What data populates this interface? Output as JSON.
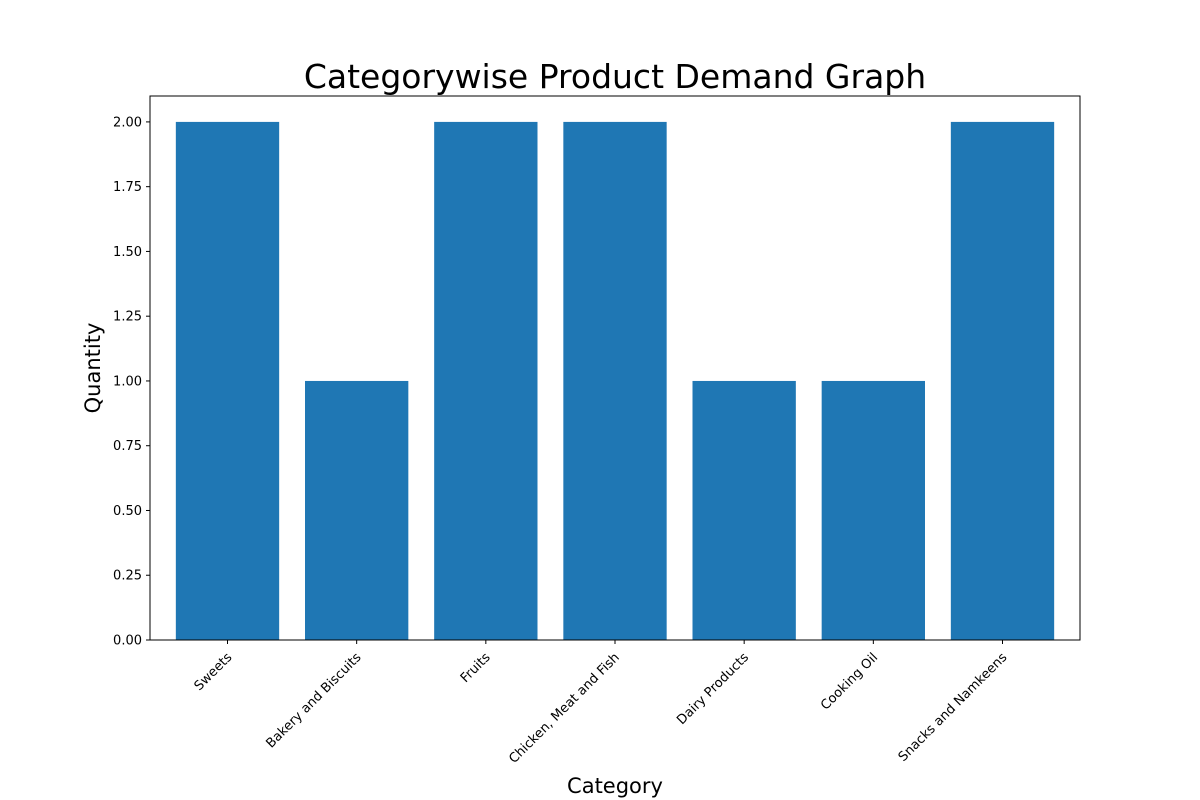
{
  "chart_data": {
    "type": "bar",
    "title": "Categorywise Product Demand Graph",
    "xlabel": "Category",
    "ylabel": "Quantity",
    "categories": [
      "Sweets",
      "Bakery and Biscuits",
      "Fruits",
      "Chicken, Meat and Fish",
      "Dairy Products",
      "Cooking Oil",
      "Snacks and Namkeens"
    ],
    "values": [
      2,
      1,
      2,
      2,
      1,
      1,
      2
    ],
    "ylim": [
      0,
      2.1
    ],
    "yticks": [
      "0.00",
      "0.25",
      "0.50",
      "0.75",
      "1.00",
      "1.25",
      "1.50",
      "1.75",
      "2.00"
    ],
    "bar_color": "#1f77b4",
    "grid": false,
    "x_tick_rotation_deg": 45
  }
}
